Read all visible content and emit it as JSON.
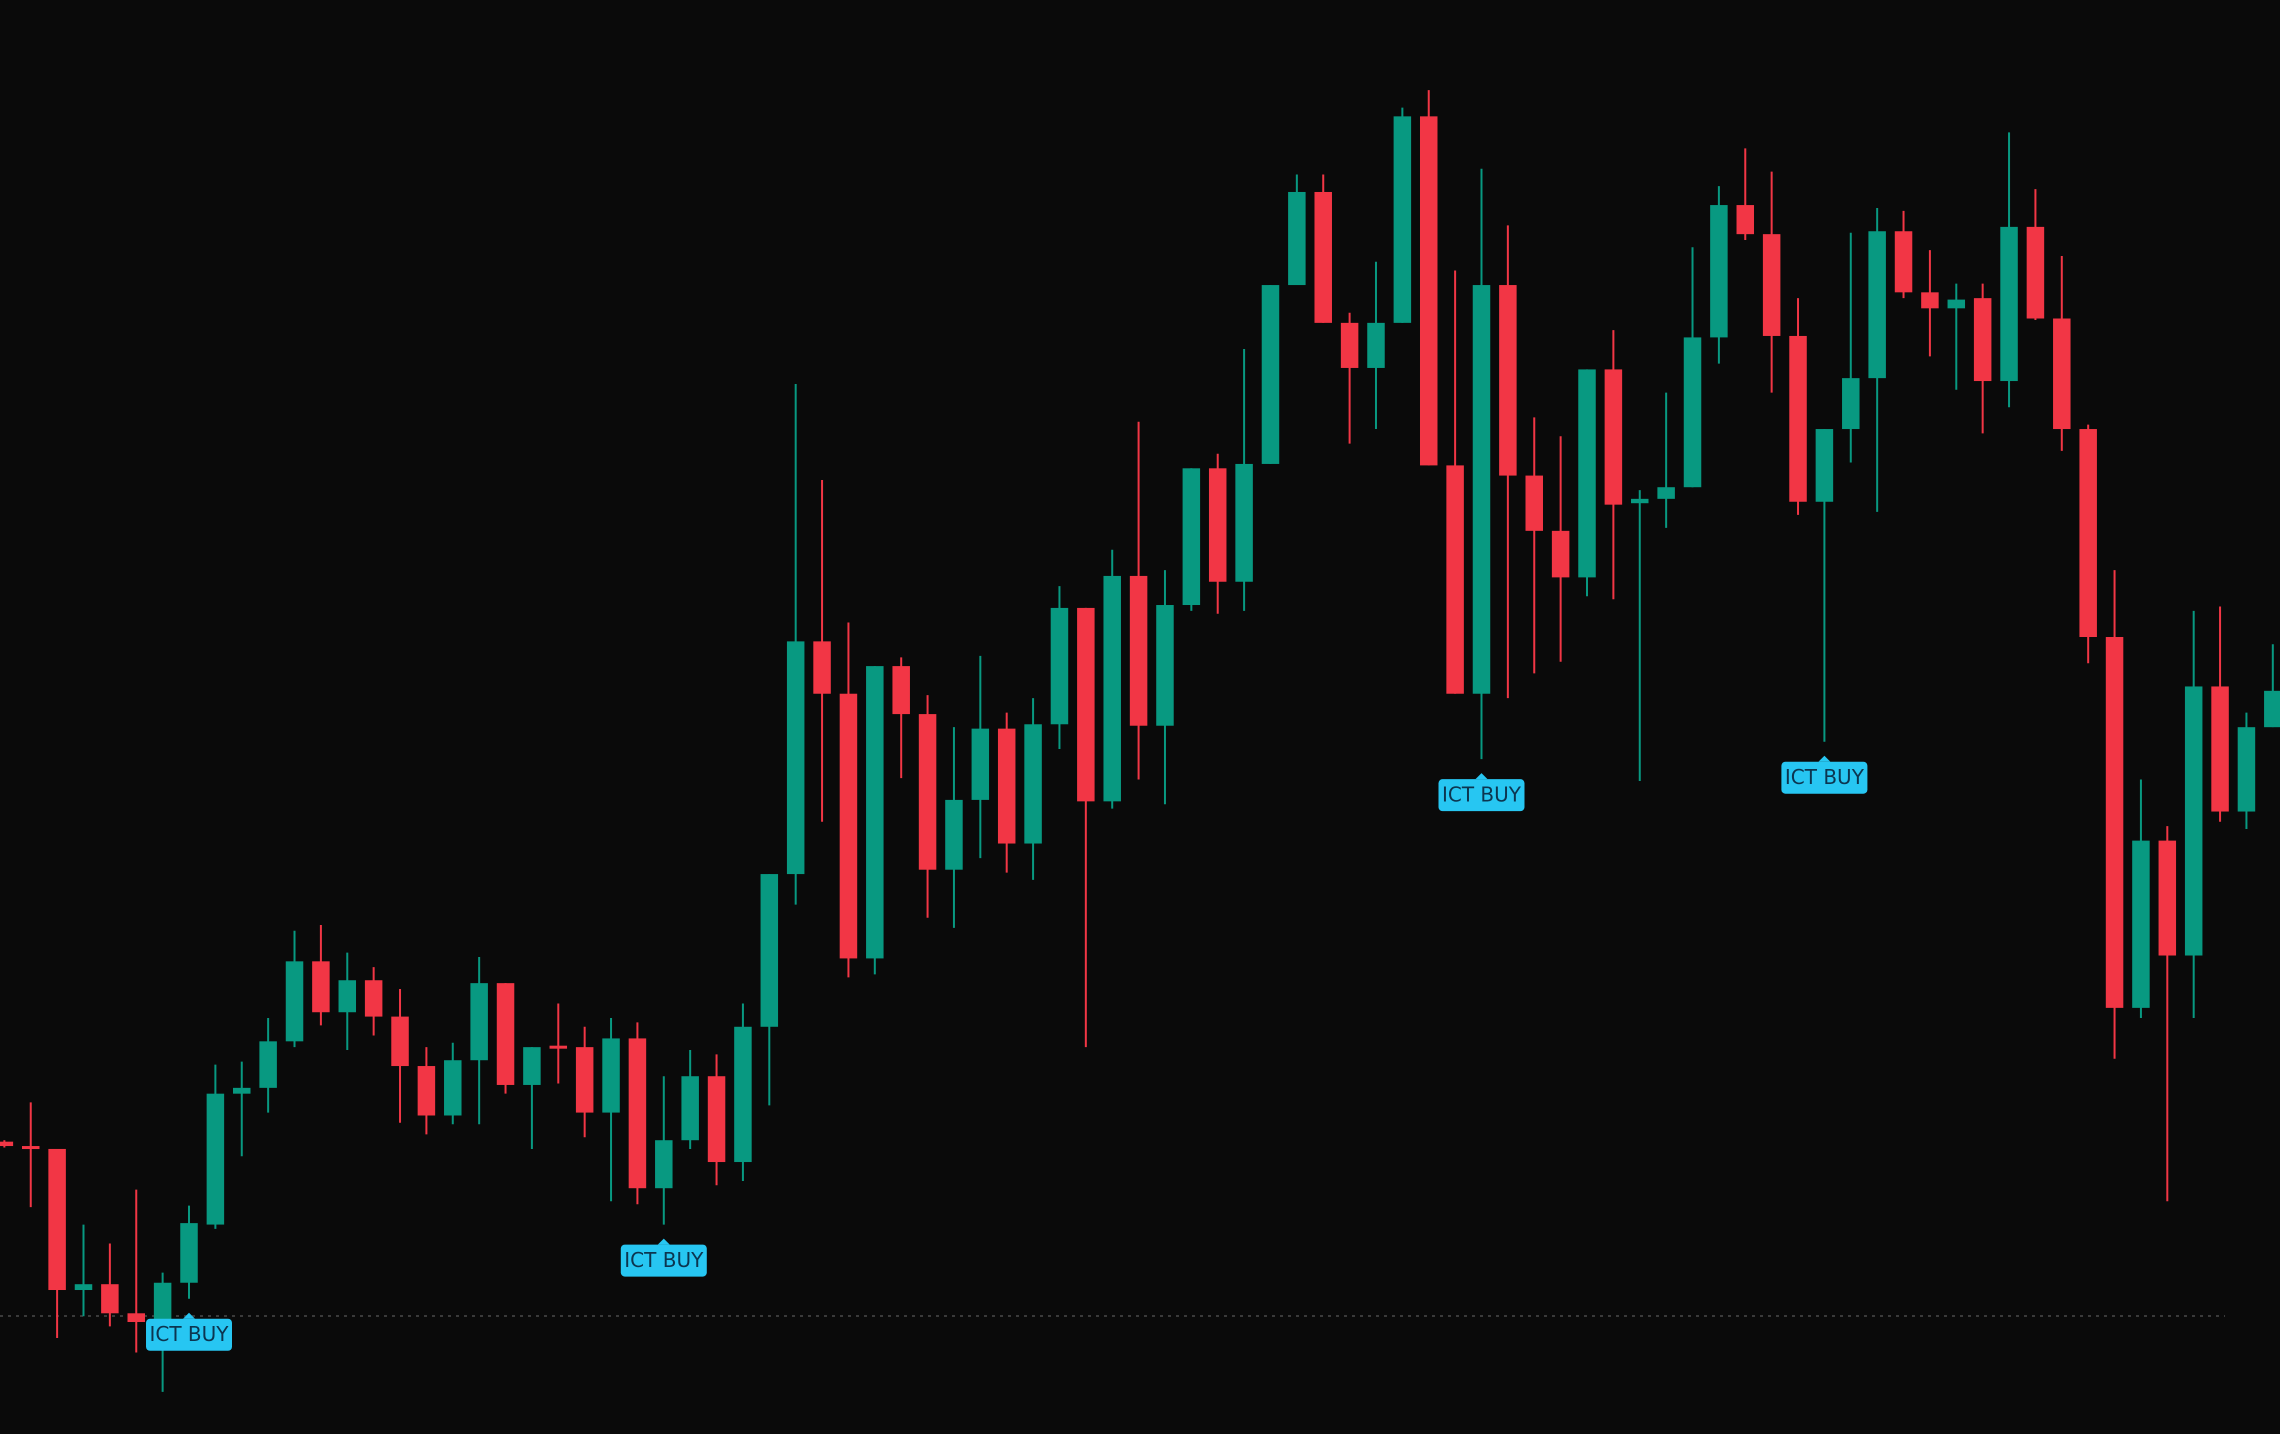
{
  "chart_data": {
    "type": "candlestick",
    "up_color": "#089981",
    "down_color": "#f23645",
    "ylim": [
      14,
      1000
    ],
    "open": [
      215,
      212,
      210,
      113,
      117,
      97,
      91,
      118,
      158,
      248,
      252,
      284,
      339,
      304,
      326,
      301,
      267,
      233,
      271,
      324,
      254,
      281,
      280,
      235,
      286,
      183,
      216,
      260,
      201,
      294,
      399,
      559,
      523,
      341,
      542,
      509,
      402,
      450,
      499,
      420,
      502,
      582,
      449,
      604,
      501,
      584,
      678,
      600,
      681,
      804,
      868,
      778,
      747,
      778,
      920,
      680,
      523,
      804,
      673,
      635,
      603,
      746,
      654,
      657,
      665,
      768,
      859,
      839,
      769,
      655,
      705,
      740,
      841,
      799,
      788,
      795,
      738,
      844,
      781,
      705,
      562,
      307,
      422,
      343,
      528,
      442,
      500
    ],
    "high": [
      216,
      242,
      210,
      158,
      145,
      182,
      125,
      171,
      268,
      270,
      300,
      360,
      364,
      345,
      335,
      320,
      280,
      283,
      342,
      324,
      280,
      310,
      294,
      300,
      297,
      260,
      278,
      275,
      310,
      399,
      736,
      670,
      572,
      542,
      548,
      522,
      500,
      549,
      510,
      520,
      597,
      582,
      622,
      710,
      608,
      678,
      688,
      760,
      804,
      880,
      880,
      785,
      820,
      926,
      938,
      814,
      884,
      845,
      713,
      700,
      746,
      773,
      663,
      730,
      830,
      872,
      898,
      882,
      795,
      705,
      840,
      857,
      855,
      828,
      805,
      805,
      909,
      870,
      824,
      708,
      608,
      464,
      432,
      580,
      583,
      510,
      557
    ],
    "low": [
      211,
      170,
      80,
      95,
      88,
      70,
      43,
      107,
      155,
      205,
      235,
      280,
      295,
      278,
      288,
      228,
      220,
      227,
      227,
      248,
      210,
      255,
      218,
      174,
      172,
      158,
      210,
      185,
      188,
      240,
      378,
      435,
      328,
      330,
      465,
      369,
      362,
      410,
      400,
      395,
      485,
      280,
      444,
      464,
      447,
      580,
      578,
      580,
      681,
      804,
      778,
      695,
      705,
      778,
      680,
      523,
      478,
      520,
      537,
      545,
      590,
      588,
      463,
      637,
      665,
      750,
      835,
      730,
      646,
      490,
      682,
      648,
      795,
      755,
      732,
      702,
      720,
      780,
      690,
      544,
      272,
      300,
      174,
      300,
      435,
      430,
      500
    ],
    "close": [
      212,
      210,
      113,
      117,
      97,
      91,
      118,
      159,
      248,
      252,
      284,
      339,
      304,
      326,
      301,
      267,
      233,
      271,
      324,
      254,
      280,
      279,
      235,
      286,
      183,
      216,
      260,
      201,
      294,
      399,
      559,
      523,
      341,
      542,
      509,
      402,
      450,
      499,
      420,
      502,
      582,
      449,
      604,
      501,
      584,
      678,
      600,
      681,
      804,
      868,
      778,
      747,
      778,
      920,
      680,
      523,
      804,
      673,
      635,
      603,
      746,
      653,
      657,
      665,
      768,
      859,
      839,
      769,
      655,
      705,
      740,
      841,
      799,
      788,
      794,
      738,
      844,
      781,
      705,
      562,
      307,
      422,
      343,
      528,
      442,
      500,
      525
    ],
    "annotations": [
      {
        "text": "ICT BUY",
        "index": 7
      },
      {
        "text": "ICT BUY",
        "index": 25
      },
      {
        "text": "ICT BUY",
        "index": 56
      },
      {
        "text": "ICT BUY",
        "index": 69
      }
    ]
  }
}
